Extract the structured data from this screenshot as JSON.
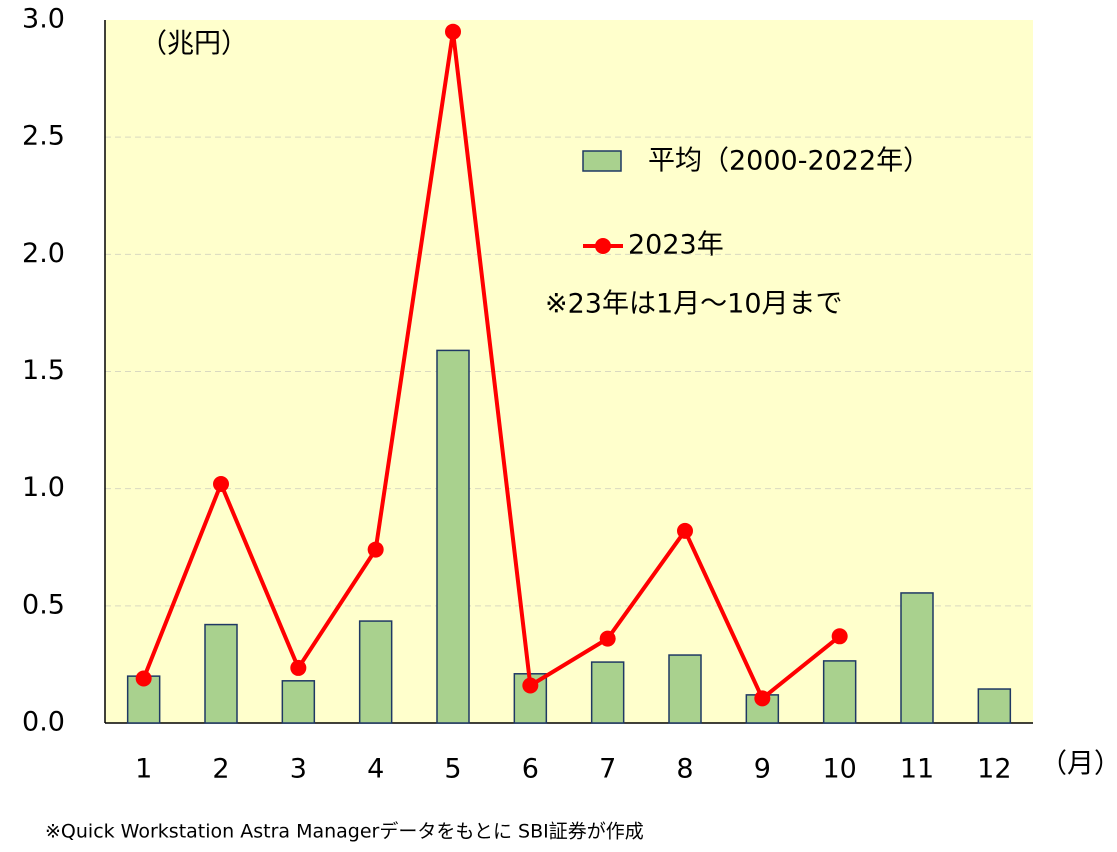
{
  "chart_data": {
    "type": "bar",
    "y_unit": "（兆円）",
    "x_unit": "（月）",
    "note": "※23年は1月～10月まで",
    "source": "※Quick Workstation Astra Managerデータをもとに SBI証券が作成",
    "categories": [
      "1",
      "2",
      "3",
      "4",
      "5",
      "6",
      "7",
      "8",
      "9",
      "10",
      "11",
      "12"
    ],
    "series": [
      {
        "name": "平均（2000-2022年）",
        "type": "bar",
        "color": "#a9d18e",
        "values": [
          0.2,
          0.42,
          0.18,
          0.435,
          1.59,
          0.21,
          0.26,
          0.29,
          0.12,
          0.265,
          0.555,
          0.145
        ]
      },
      {
        "name": "2023年",
        "type": "line",
        "color": "#ff0000",
        "values": [
          0.19,
          1.02,
          0.235,
          0.74,
          2.95,
          0.16,
          0.36,
          0.82,
          0.105,
          0.37,
          null,
          null
        ]
      }
    ],
    "ylim": [
      0,
      3
    ],
    "yticks": [
      {
        "value": 0,
        "label": "0.0"
      },
      0.5,
      {
        "value": 1,
        "label": "1.0"
      },
      1.5,
      {
        "value": 2,
        "label": "2.0"
      },
      2.5,
      {
        "value": 3,
        "label": "3.0"
      }
    ],
    "grid": true
  }
}
